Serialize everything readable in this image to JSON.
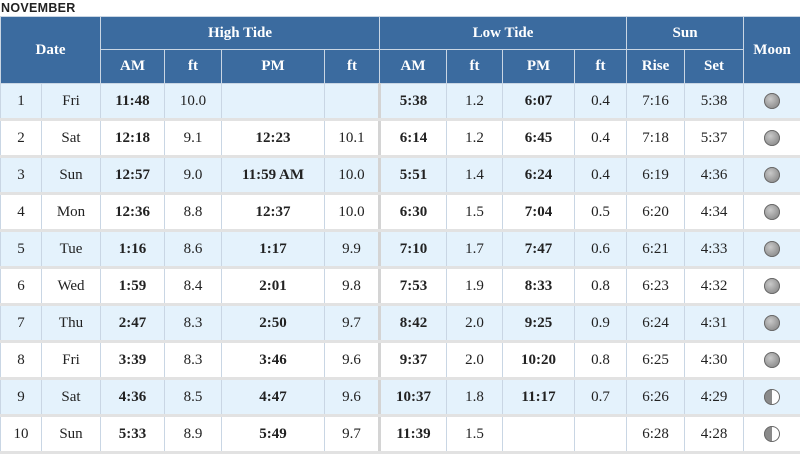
{
  "month": "NOVEMBER",
  "headers": {
    "date": "Date",
    "high_tide": "High Tide",
    "low_tide": "Low Tide",
    "sun": "Sun",
    "moon": "Moon",
    "am": "AM",
    "pm": "PM",
    "ft": "ft",
    "rise": "Rise",
    "set": "Set"
  },
  "rows": [
    {
      "day": "1",
      "dow": "Fri",
      "high_am": "11:48",
      "high_am_ft": "10.0",
      "high_pm": "",
      "high_pm_ft": "",
      "low_am": "5:38",
      "low_am_ft": "1.2",
      "low_pm": "6:07",
      "low_pm_ft": "0.4",
      "rise": "7:16",
      "set": "5:38",
      "moon": "waxing-gibbous"
    },
    {
      "day": "2",
      "dow": "Sat",
      "high_am": "12:18",
      "high_am_ft": "9.1",
      "high_pm": "12:23",
      "high_pm_ft": "10.1",
      "low_am": "6:14",
      "low_am_ft": "1.2",
      "low_pm": "6:45",
      "low_pm_ft": "0.4",
      "rise": "7:18",
      "set": "5:37",
      "moon": "waxing-gibbous"
    },
    {
      "day": "3",
      "dow": "Sun",
      "high_am": "12:57",
      "high_am_ft": "9.0",
      "high_pm": "11:59 AM",
      "high_pm_ft": "10.0",
      "low_am": "5:51",
      "low_am_ft": "1.4",
      "low_pm": "6:24",
      "low_pm_ft": "0.4",
      "rise": "6:19",
      "set": "4:36",
      "moon": "waxing-gibbous"
    },
    {
      "day": "4",
      "dow": "Mon",
      "high_am": "12:36",
      "high_am_ft": "8.8",
      "high_pm": "12:37",
      "high_pm_ft": "10.0",
      "low_am": "6:30",
      "low_am_ft": "1.5",
      "low_pm": "7:04",
      "low_pm_ft": "0.5",
      "rise": "6:20",
      "set": "4:34",
      "moon": "waxing-gibbous"
    },
    {
      "day": "5",
      "dow": "Tue",
      "high_am": "1:16",
      "high_am_ft": "8.6",
      "high_pm": "1:17",
      "high_pm_ft": "9.9",
      "low_am": "7:10",
      "low_am_ft": "1.7",
      "low_pm": "7:47",
      "low_pm_ft": "0.6",
      "rise": "6:21",
      "set": "4:33",
      "moon": "waning-gibbous"
    },
    {
      "day": "6",
      "dow": "Wed",
      "high_am": "1:59",
      "high_am_ft": "8.4",
      "high_pm": "2:01",
      "high_pm_ft": "9.8",
      "low_am": "7:53",
      "low_am_ft": "1.9",
      "low_pm": "8:33",
      "low_pm_ft": "0.8",
      "rise": "6:23",
      "set": "4:32",
      "moon": "waning-gibbous"
    },
    {
      "day": "7",
      "dow": "Thu",
      "high_am": "2:47",
      "high_am_ft": "8.3",
      "high_pm": "2:50",
      "high_pm_ft": "9.7",
      "low_am": "8:42",
      "low_am_ft": "2.0",
      "low_pm": "9:25",
      "low_pm_ft": "0.9",
      "rise": "6:24",
      "set": "4:31",
      "moon": "waning-gibbous"
    },
    {
      "day": "8",
      "dow": "Fri",
      "high_am": "3:39",
      "high_am_ft": "8.3",
      "high_pm": "3:46",
      "high_pm_ft": "9.6",
      "low_am": "9:37",
      "low_am_ft": "2.0",
      "low_pm": "10:20",
      "low_pm_ft": "0.8",
      "rise": "6:25",
      "set": "4:30",
      "moon": "waning-gibbous"
    },
    {
      "day": "9",
      "dow": "Sat",
      "high_am": "4:36",
      "high_am_ft": "8.5",
      "high_pm": "4:47",
      "high_pm_ft": "9.6",
      "low_am": "10:37",
      "low_am_ft": "1.8",
      "low_pm": "11:17",
      "low_pm_ft": "0.7",
      "rise": "6:26",
      "set": "4:29",
      "moon": "last-quarter"
    },
    {
      "day": "10",
      "dow": "Sun",
      "high_am": "5:33",
      "high_am_ft": "8.9",
      "high_pm": "5:49",
      "high_pm_ft": "9.7",
      "low_am": "11:39",
      "low_am_ft": "1.5",
      "low_pm": "",
      "low_pm_ft": "",
      "rise": "6:28",
      "set": "4:28",
      "moon": "last-quarter"
    }
  ]
}
